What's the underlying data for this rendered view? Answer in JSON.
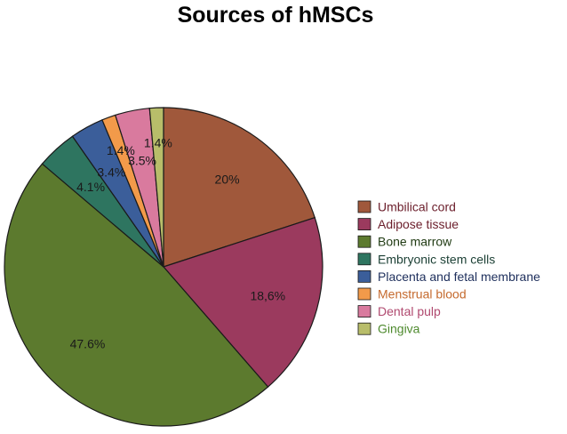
{
  "chart_data": {
    "type": "pie",
    "title": "Sources of hMSCs",
    "legend_position": "right",
    "slices": [
      {
        "label": "Umbilical cord",
        "value": 20,
        "display": "20%",
        "color": "#A0583B",
        "legend_text_color": "#6B1E2B"
      },
      {
        "label": "Adipose tissue",
        "value": 18.6,
        "display": "18,6%",
        "color": "#9B3A5E",
        "legend_text_color": "#6B1E2B"
      },
      {
        "label": "Bone marrow",
        "value": 47.6,
        "display": "47.6%",
        "color": "#5C7A2E",
        "legend_text_color": "#1F3A12"
      },
      {
        "label": "Embryonic stem cells",
        "value": 4.1,
        "display": "4.1%",
        "color": "#2E7560",
        "legend_text_color": "#1B3F34"
      },
      {
        "label": "Placenta and fetal membrane",
        "value": 3.4,
        "display": "3.4%",
        "color": "#3B5E9A",
        "legend_text_color": "#1E2F5C"
      },
      {
        "label": "Menstrual blood",
        "value": 1.4,
        "display": "1.4%",
        "color": "#F29A4A",
        "legend_text_color": "#C56A2E"
      },
      {
        "label": "Dental pulp",
        "value": 3.5,
        "display": "3.5%",
        "color": "#D97A9E",
        "legend_text_color": "#B0496F"
      },
      {
        "label": "Gingiva",
        "value": 1.4,
        "display": "1.4%",
        "color": "#B8BD6A",
        "legend_text_color": "#4E8A2E"
      }
    ]
  }
}
